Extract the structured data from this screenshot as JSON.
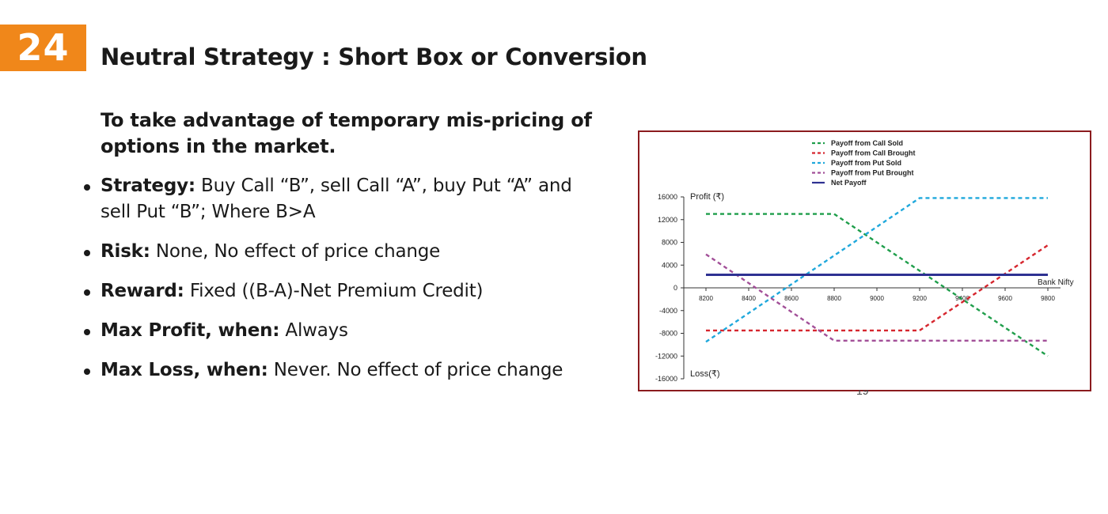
{
  "slide": {
    "number": "24",
    "title": "Neutral Strategy : Short Box or Conversion",
    "intro": "To take advantage of temporary mis-pricing of options in the market.",
    "bullets": [
      {
        "label": "Strategy:",
        "text": "Buy Call “B”, sell Call “A”, buy Put “A” and sell Put “B”; Where B>A"
      },
      {
        "label": "Risk:",
        "text": "None, No effect of price change"
      },
      {
        "label": "Reward:",
        "text": "Fixed ((B-A)-Net Premium Credit)"
      },
      {
        "label": "Max Profit, when:",
        "text": "Always"
      },
      {
        "label": "Max Loss, when:",
        "text": "Never. No effect of price change"
      }
    ],
    "page_number": "19"
  },
  "colors": {
    "badge": "#f0871a",
    "frame": "#8b1b1e",
    "call_sold": "#1f9e4b",
    "call_brought": "#d6262e",
    "put_sold": "#1fa8dc",
    "put_brought": "#a24f98",
    "net": "#2e3192"
  },
  "chart_data": {
    "type": "line",
    "ylabel_top": "Profit (₹)",
    "ylabel_bottom": "Loss(₹)",
    "xlabel": "Bank Nifty",
    "xlim": [
      8200,
      9800
    ],
    "ylim": [
      -16000,
      16000
    ],
    "x_ticks": [
      8200,
      8400,
      8600,
      8800,
      9000,
      9200,
      9400,
      9600,
      9800
    ],
    "y_ticks": [
      16000,
      12000,
      8000,
      4000,
      0,
      -4000,
      -8000,
      -12000,
      -16000
    ],
    "grid": false,
    "legend_position": "top-center",
    "series": [
      {
        "name": "Payoff from Call Sold",
        "color": "#1f9e4b",
        "style": "dashed",
        "points": [
          [
            8200,
            13000
          ],
          [
            8800,
            13000
          ],
          [
            9800,
            -12000
          ]
        ]
      },
      {
        "name": "Payoff from Call Brought",
        "color": "#d6262e",
        "style": "dashed",
        "points": [
          [
            8200,
            -7500
          ],
          [
            9200,
            -7500
          ],
          [
            9800,
            7500
          ]
        ]
      },
      {
        "name": "Payoff from Put Sold",
        "color": "#1fa8dc",
        "style": "dashed",
        "points": [
          [
            8200,
            -9500
          ],
          [
            9200,
            15800
          ],
          [
            9800,
            15800
          ]
        ]
      },
      {
        "name": "Payoff from Put Brought",
        "color": "#a24f98",
        "style": "dashed",
        "points": [
          [
            8200,
            5900
          ],
          [
            8800,
            -9300
          ],
          [
            9800,
            -9300
          ]
        ]
      },
      {
        "name": "Net Payoff",
        "color": "#2e3192",
        "style": "solid",
        "points": [
          [
            8200,
            2300
          ],
          [
            9800,
            2300
          ]
        ]
      }
    ]
  }
}
